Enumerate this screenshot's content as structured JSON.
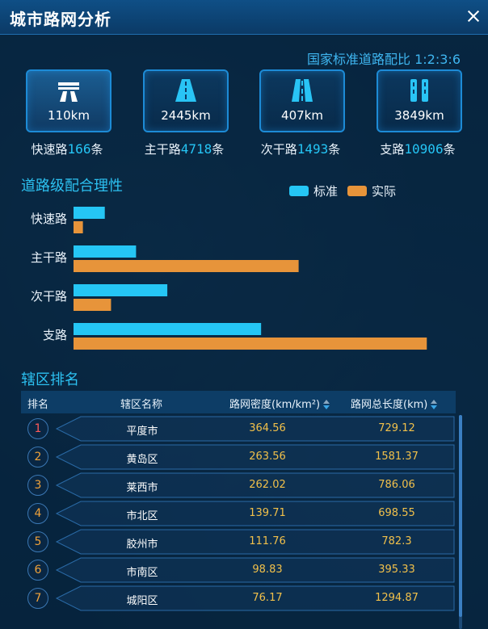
{
  "window": {
    "title": "城市路网分析"
  },
  "ratio_text": "国家标准道路配比 1:2:3:6",
  "road_types": [
    {
      "name": "快速路",
      "km": "110km",
      "count": "166",
      "unit": "条",
      "icon": "highway-icon",
      "active": true
    },
    {
      "name": "主干路",
      "km": "2445km",
      "count": "4718",
      "unit": "条",
      "icon": "arterial-road-icon",
      "active": false
    },
    {
      "name": "次干路",
      "km": "407km",
      "count": "1493",
      "unit": "条",
      "icon": "secondary-road-icon",
      "active": false
    },
    {
      "name": "支路",
      "km": "3849km",
      "count": "10906",
      "unit": "条",
      "icon": "branch-road-icon",
      "active": false
    }
  ],
  "chart_section_title": "道路级配合理性",
  "chart_data": {
    "type": "bar",
    "orientation": "horizontal",
    "categories": [
      "快速路",
      "主干路",
      "次干路",
      "支路"
    ],
    "series": [
      {
        "name": "标准",
        "values": [
          1,
          2,
          3,
          6
        ],
        "color": "#25c6f5"
      },
      {
        "name": "实际",
        "values": [
          0.3,
          7.2,
          1.2,
          11.3
        ],
        "color": "#e7943a"
      }
    ],
    "xlim": [
      0,
      11.5
    ],
    "legend": "top-right",
    "grid": false
  },
  "ranking": {
    "title": "辖区排名",
    "headers": {
      "rank": "排名",
      "name": "辖区名称",
      "density": "路网密度(km/km²)",
      "length": "路网总长度(km)"
    },
    "rows": [
      {
        "rank": "1",
        "name": "平度市",
        "density": "364.56",
        "length": "729.12"
      },
      {
        "rank": "2",
        "name": "黄岛区",
        "density": "263.56",
        "length": "1581.37"
      },
      {
        "rank": "3",
        "name": "莱西市",
        "density": "262.02",
        "length": "786.06"
      },
      {
        "rank": "4",
        "name": "市北区",
        "density": "139.71",
        "length": "698.55"
      },
      {
        "rank": "5",
        "name": "胶州市",
        "density": "111.76",
        "length": "782.3"
      },
      {
        "rank": "6",
        "name": "市南区",
        "density": "98.83",
        "length": "395.33"
      },
      {
        "rank": "7",
        "name": "城阳区",
        "density": "76.17",
        "length": "1294.87"
      }
    ],
    "rank_colors": {
      "top": "#ff5a5a",
      "normal": "#f0a23a"
    }
  }
}
